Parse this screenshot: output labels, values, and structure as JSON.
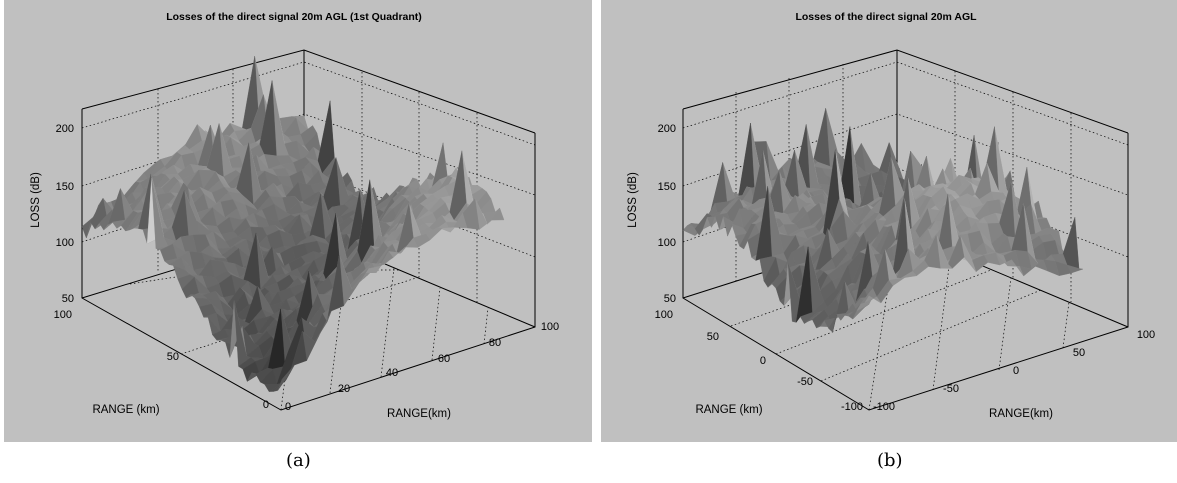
{
  "chart_data": [
    {
      "type": "surface3d",
      "title": "Losses of the direct signal 20m AGL (1st Quadrant)",
      "zlabel": "LOSS (dB)",
      "xlabel": "RANGE(km)",
      "ylabel": "RANGE (km)",
      "zlim": [
        50,
        210
      ],
      "xlim": [
        0,
        100
      ],
      "ylim": [
        0,
        100
      ],
      "z_ticks": [
        "50",
        "100",
        "150",
        "200"
      ],
      "x_ticks": [
        "0",
        "20",
        "40",
        "60",
        "80",
        "100"
      ],
      "y_ticks": [
        "0",
        "50",
        "100"
      ],
      "grid": true,
      "colormap": "gray",
      "view": "azimuth -37.5, elevation 30",
      "surface_profile": {
        "description": "terrain-following loss surface; loss increases with range, sharp peaks up to ~200 dB, dip to ~50 dB near origin",
        "z_range_observed": [
          55,
          205
        ]
      }
    },
    {
      "type": "surface3d",
      "title": "Losses of the direct signal 20m AGL",
      "zlabel": "LOSS (dB)",
      "xlabel": "RANGE(km)",
      "ylabel": "RANGE (km)",
      "zlim": [
        50,
        210
      ],
      "xlim": [
        -100,
        100
      ],
      "ylim": [
        -100,
        100
      ],
      "z_ticks": [
        "50",
        "100",
        "150",
        "200"
      ],
      "x_ticks": [
        "-100",
        "-50",
        "0",
        "50",
        "100"
      ],
      "y_ticks": [
        "-100",
        "-50",
        "0",
        "50",
        "100"
      ],
      "grid": true,
      "colormap": "gray",
      "view": "azimuth -37.5, elevation 30",
      "surface_profile": {
        "description": "full-plane loss surface; trough around ~100 dB near edges, ridges with spikes up to ~210 dB",
        "z_range_observed": [
          75,
          210
        ]
      }
    }
  ],
  "captions": {
    "a": "(a)",
    "b": "(b)"
  }
}
